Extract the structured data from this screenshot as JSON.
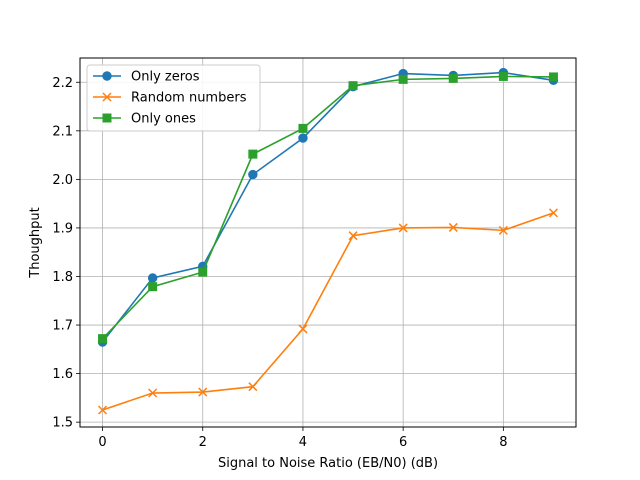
{
  "chart_data": {
    "type": "line",
    "title": "",
    "xlabel": "Signal to Noise Ratio (EB/N0) (dB)",
    "ylabel": "Thoughput",
    "xlim": [
      -0.45,
      9.45
    ],
    "ylim": [
      1.49,
      2.25
    ],
    "x_ticks": [
      0,
      2,
      4,
      6,
      8
    ],
    "y_ticks": [
      1.5,
      1.6,
      1.7,
      1.8,
      1.9,
      2.0,
      2.1,
      2.2
    ],
    "grid": true,
    "legend_position": "top-left",
    "x": [
      0,
      1,
      2,
      3,
      4,
      5,
      6,
      7,
      8,
      9
    ],
    "series": [
      {
        "name": "Only zeros",
        "color": "#1f77b4",
        "marker": "circle",
        "values": [
          1.665,
          1.797,
          1.821,
          2.01,
          2.085,
          2.191,
          2.218,
          2.214,
          2.22,
          2.204
        ]
      },
      {
        "name": "Random numbers",
        "color": "#ff7f0e",
        "marker": "x",
        "values": [
          1.525,
          1.56,
          1.562,
          1.573,
          1.692,
          1.884,
          1.9,
          1.901,
          1.895,
          1.931
        ]
      },
      {
        "name": "Only ones",
        "color": "#2ca02c",
        "marker": "square",
        "values": [
          1.672,
          1.779,
          1.809,
          2.052,
          2.105,
          2.193,
          2.206,
          2.208,
          2.212,
          2.211
        ]
      }
    ]
  }
}
